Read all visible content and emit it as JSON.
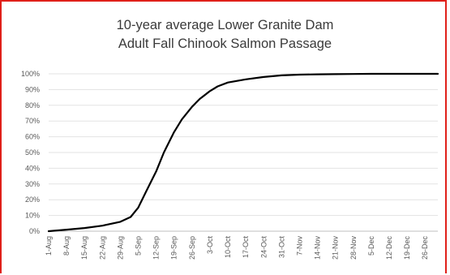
{
  "chart_data": {
    "type": "line",
    "title_lines": [
      "10-year average Lower Granite Dam",
      "Adult Fall Chinook Salmon Passage"
    ],
    "xlabel": "",
    "ylabel": "",
    "ylim": [
      0,
      100
    ],
    "y_ticks": [
      "0%",
      "10%",
      "20%",
      "30%",
      "40%",
      "50%",
      "60%",
      "70%",
      "80%",
      "90%",
      "100%"
    ],
    "x_ticks": [
      "1-Aug",
      "8-Aug",
      "15-Aug",
      "22-Aug",
      "29-Aug",
      "5-Sep",
      "12-Sep",
      "19-Sep",
      "26-Sep",
      "3-Oct",
      "10-Oct",
      "17-Oct",
      "24-Oct",
      "31-Oct",
      "7-Nov",
      "14-Nov",
      "21-Nov",
      "28-Nov",
      "5-Dec",
      "12-Dec",
      "19-Dec",
      "26-Dec"
    ],
    "grid": "horizontal",
    "line_color": "#000000",
    "series": [
      {
        "x": [
          "1-Aug",
          "8-Aug",
          "15-Aug",
          "22-Aug",
          "29-Aug",
          "2-Sep",
          "5-Sep",
          "8-Sep",
          "12-Sep",
          "15-Sep",
          "19-Sep",
          "22-Sep",
          "26-Sep",
          "29-Sep",
          "3-Oct",
          "6-Oct",
          "10-Oct",
          "17-Oct",
          "24-Oct",
          "31-Oct",
          "7-Nov",
          "14-Nov",
          "21-Nov",
          "28-Nov",
          "5-Dec",
          "12-Dec",
          "19-Dec",
          "26-Dec",
          "31-Dec"
        ],
        "values": [
          0,
          1,
          2,
          3.5,
          6,
          9,
          15,
          25,
          38,
          50,
          63,
          71,
          79,
          84,
          89,
          92,
          94.5,
          96.5,
          98,
          99,
          99.5,
          99.7,
          99.8,
          99.9,
          100,
          100,
          100,
          100,
          100
        ]
      }
    ]
  }
}
